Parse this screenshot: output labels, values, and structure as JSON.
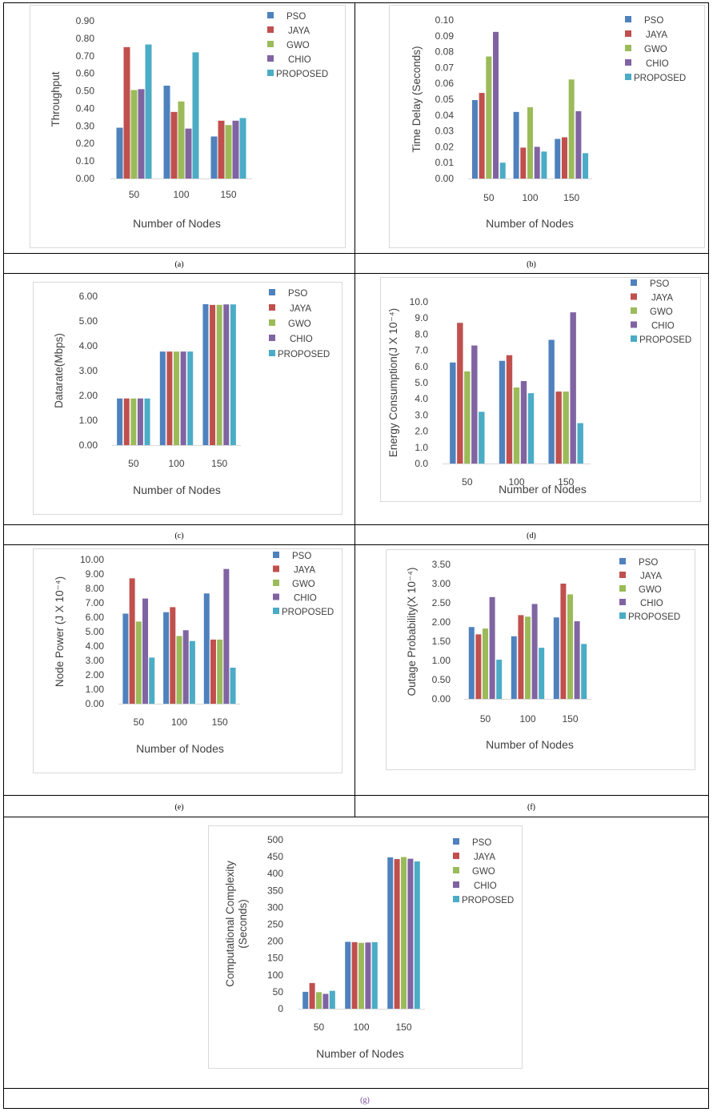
{
  "series_names": [
    "PSO",
    "JAYA",
    "GWO",
    "CHIO",
    "PROPOSED"
  ],
  "series_colors": [
    "#4F81BD",
    "#C0504D",
    "#9BBB59",
    "#8064A2",
    "#4BACC6"
  ],
  "captions": [
    "(a)",
    "(b)",
    "(c)",
    "(d)",
    "(e)",
    "(f)",
    "(g)"
  ],
  "chart_data": [
    {
      "type": "bar",
      "id": "a",
      "title": "",
      "xlabel": "Number of Nodes",
      "ylabel": "Throughput",
      "ylim": [
        0,
        0.9
      ],
      "yticks": [
        "0.00",
        "0.10",
        "0.20",
        "0.30",
        "0.40",
        "0.50",
        "0.60",
        "0.70",
        "0.80",
        "0.90"
      ],
      "categories": [
        "50",
        "100",
        "150"
      ],
      "series": [
        {
          "name": "PSO",
          "values": [
            0.29,
            0.53,
            0.24
          ]
        },
        {
          "name": "JAYA",
          "values": [
            0.75,
            0.38,
            0.33
          ]
        },
        {
          "name": "GWO",
          "values": [
            0.505,
            0.44,
            0.305
          ]
        },
        {
          "name": "CHIO",
          "values": [
            0.51,
            0.285,
            0.33
          ]
        },
        {
          "name": "PROPOSED",
          "values": [
            0.765,
            0.72,
            0.345
          ]
        }
      ],
      "legend": "top-right"
    },
    {
      "type": "bar",
      "id": "b",
      "xlabel": "Number of Nodes",
      "ylabel": "Time Delay (Seconds)",
      "ylim": [
        0,
        0.1
      ],
      "yticks": [
        "0.00",
        "0.01",
        "0.02",
        "0.03",
        "0.04",
        "0.05",
        "0.06",
        "0.07",
        "0.08",
        "0.09",
        "0.10"
      ],
      "categories": [
        "50",
        "100",
        "150"
      ],
      "series": [
        {
          "name": "PSO",
          "values": [
            0.0495,
            0.042,
            0.025
          ]
        },
        {
          "name": "JAYA",
          "values": [
            0.054,
            0.0195,
            0.026
          ]
        },
        {
          "name": "GWO",
          "values": [
            0.077,
            0.045,
            0.0625
          ]
        },
        {
          "name": "CHIO",
          "values": [
            0.0925,
            0.02,
            0.0425
          ]
        },
        {
          "name": "PROPOSED",
          "values": [
            0.01,
            0.017,
            0.016
          ]
        }
      ],
      "legend": "top-right"
    },
    {
      "type": "bar",
      "id": "c",
      "xlabel": "Number of Nodes",
      "ylabel": "Datarate(Mbps)",
      "ylim": [
        0,
        6
      ],
      "yticks": [
        "0.00",
        "1.00",
        "2.00",
        "3.00",
        "4.00",
        "5.00",
        "6.00"
      ],
      "categories": [
        "50",
        "100",
        "150"
      ],
      "series": [
        {
          "name": "PSO",
          "values": [
            1.88,
            3.77,
            5.68
          ]
        },
        {
          "name": "JAYA",
          "values": [
            1.88,
            3.77,
            5.65
          ]
        },
        {
          "name": "GWO",
          "values": [
            1.88,
            3.77,
            5.65
          ]
        },
        {
          "name": "CHIO",
          "values": [
            1.88,
            3.77,
            5.67
          ]
        },
        {
          "name": "PROPOSED",
          "values": [
            1.88,
            3.77,
            5.67
          ]
        }
      ],
      "legend": "top-right"
    },
    {
      "type": "bar",
      "id": "d",
      "xlabel": "Number of Nodes",
      "ylabel": "Energy Consumption(J X 10⁻⁴)",
      "ylim": [
        0,
        10
      ],
      "yticks": [
        "0.0",
        "1.0",
        "2.0",
        "3.0",
        "4.0",
        "5.0",
        "6.0",
        "7.0",
        "8.0",
        "9.0",
        "10.0"
      ],
      "categories": [
        "50",
        "100",
        "150"
      ],
      "series": [
        {
          "name": "PSO",
          "values": [
            6.25,
            6.35,
            7.65
          ]
        },
        {
          "name": "JAYA",
          "values": [
            8.7,
            6.7,
            4.45
          ]
        },
        {
          "name": "GWO",
          "values": [
            5.7,
            4.7,
            4.45
          ]
        },
        {
          "name": "CHIO",
          "values": [
            7.3,
            5.1,
            9.35
          ]
        },
        {
          "name": "PROPOSED",
          "values": [
            3.2,
            4.35,
            2.5
          ]
        }
      ],
      "legend": "top-right"
    },
    {
      "type": "bar",
      "id": "e",
      "xlabel": "Number of Nodes",
      "ylabel": "Node Power (J X 10⁻⁴)",
      "ylim": [
        0,
        10
      ],
      "yticks": [
        "0.00",
        "1.00",
        "2.00",
        "3.00",
        "4.00",
        "5.00",
        "6.00",
        "7.00",
        "8.00",
        "9.00",
        "10.00"
      ],
      "categories": [
        "50",
        "100",
        "150"
      ],
      "series": [
        {
          "name": "PSO",
          "values": [
            6.25,
            6.35,
            7.65
          ]
        },
        {
          "name": "JAYA",
          "values": [
            8.7,
            6.7,
            4.45
          ]
        },
        {
          "name": "GWO",
          "values": [
            5.7,
            4.7,
            4.45
          ]
        },
        {
          "name": "CHIO",
          "values": [
            7.3,
            5.1,
            9.35
          ]
        },
        {
          "name": "PROPOSED",
          "values": [
            3.2,
            4.35,
            2.5
          ]
        }
      ],
      "legend": "top-right"
    },
    {
      "type": "bar",
      "id": "f",
      "xlabel": "Number of Nodes",
      "ylabel": "Outage Probability(X 10⁻⁴)",
      "ylim": [
        0,
        3.5
      ],
      "yticks": [
        "0.00",
        "0.50",
        "1.00",
        "1.50",
        "2.00",
        "2.50",
        "3.00",
        "3.50"
      ],
      "categories": [
        "50",
        "100",
        "150"
      ],
      "series": [
        {
          "name": "PSO",
          "values": [
            1.87,
            1.63,
            2.12
          ]
        },
        {
          "name": "JAYA",
          "values": [
            1.68,
            2.18,
            3.0
          ]
        },
        {
          "name": "GWO",
          "values": [
            1.83,
            2.14,
            2.72
          ]
        },
        {
          "name": "CHIO",
          "values": [
            2.65,
            2.47,
            2.02
          ]
        },
        {
          "name": "PROPOSED",
          "values": [
            1.02,
            1.33,
            1.43
          ]
        }
      ],
      "legend": "top-right"
    },
    {
      "type": "bar",
      "id": "g",
      "xlabel": "Number of Nodes",
      "ylabel": "Computational Complexity (Seconds)",
      "ylim": [
        0,
        500
      ],
      "yticks": [
        "0",
        "50",
        "100",
        "150",
        "200",
        "250",
        "300",
        "350",
        "400",
        "450",
        "500"
      ],
      "categories": [
        "50",
        "100",
        "150"
      ],
      "series": [
        {
          "name": "PSO",
          "values": [
            50,
            198,
            448
          ]
        },
        {
          "name": "JAYA",
          "values": [
            76,
            197,
            443
          ]
        },
        {
          "name": "GWO",
          "values": [
            49,
            195,
            449
          ]
        },
        {
          "name": "CHIO",
          "values": [
            44,
            196,
            444
          ]
        },
        {
          "name": "PROPOSED",
          "values": [
            53,
            197,
            436
          ]
        }
      ],
      "legend": "top-right"
    }
  ]
}
